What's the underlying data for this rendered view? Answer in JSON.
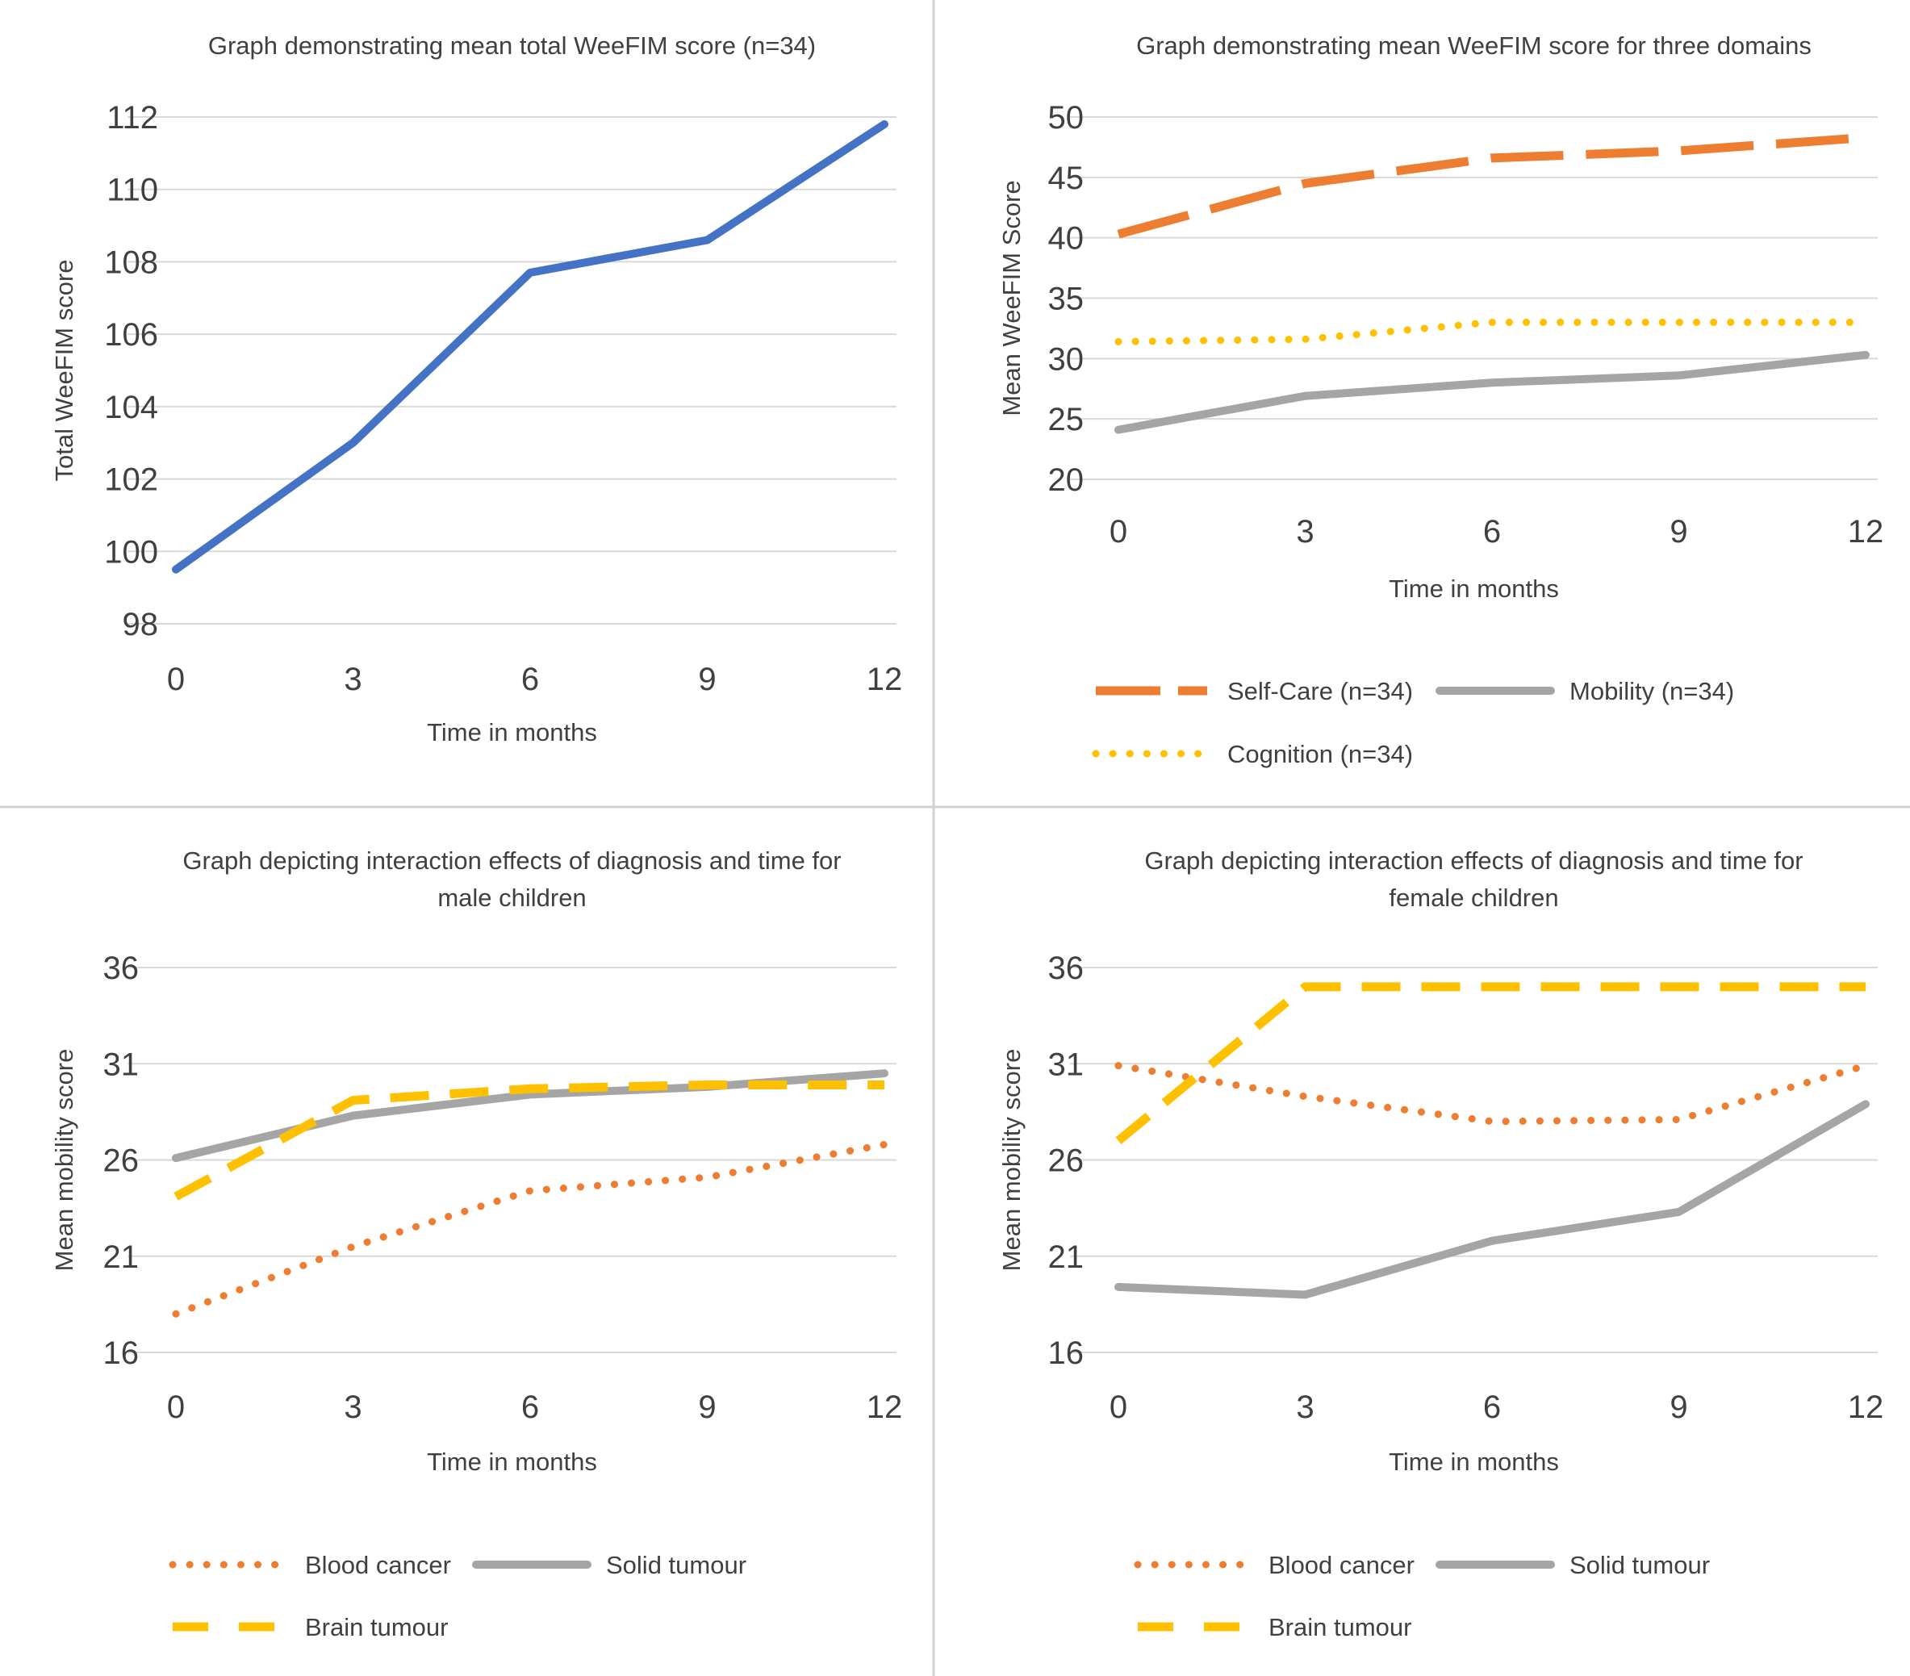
{
  "chart_data": [
    {
      "type": "line",
      "title": "Graph demonstrating mean total WeeFIM score (n=34)",
      "xlabel": "Time in months",
      "ylabel": "Total WeeFIM score",
      "categories": [
        "0",
        "3",
        "6",
        "9",
        "12"
      ],
      "y_ticks": [
        "98",
        "100",
        "102",
        "104",
        "106",
        "108",
        "110",
        "112"
      ],
      "ylim": [
        98,
        112
      ],
      "grid": true,
      "legend": "none",
      "series": [
        {
          "name": "",
          "values": [
            99.5,
            103.0,
            107.7,
            108.6,
            111.8
          ],
          "color": "#4472c4",
          "style": "solid"
        }
      ]
    },
    {
      "type": "line",
      "title": "Graph demonstrating mean WeeFIM score for three domains",
      "xlabel": "Time in months",
      "ylabel": "Mean WeeFIM Score",
      "categories": [
        "0",
        "3",
        "6",
        "9",
        "12"
      ],
      "y_ticks": [
        "20",
        "25",
        "30",
        "35",
        "40",
        "45",
        "50"
      ],
      "ylim": [
        20,
        50
      ],
      "grid": true,
      "legend": "bottom",
      "series": [
        {
          "name": "Self-Care (n=34)",
          "values": [
            40.3,
            44.5,
            46.6,
            47.2,
            48.3
          ],
          "color": "#ed7d31",
          "style": "longdash"
        },
        {
          "name": "Mobility (n=34)",
          "values": [
            24.1,
            26.9,
            28.0,
            28.6,
            30.3
          ],
          "color": "#a5a5a5",
          "style": "solid"
        },
        {
          "name": "Cognition (n=34)",
          "values": [
            31.4,
            31.6,
            33.0,
            33.0,
            33.0
          ],
          "color": "#ffc000",
          "style": "dotted"
        }
      ]
    },
    {
      "type": "line",
      "title": "Graph depicting interaction effects of diagnosis and time for male children",
      "title_lines": [
        "Graph depicting interaction effects of diagnosis and time for",
        "male children"
      ],
      "xlabel": "Time in months",
      "ylabel": "Mean mobility score",
      "categories": [
        "0",
        "3",
        "6",
        "9",
        "12"
      ],
      "y_ticks": [
        "16",
        "21",
        "26",
        "31",
        "36"
      ],
      "ylim": [
        16,
        36
      ],
      "grid": true,
      "legend": "bottom",
      "series": [
        {
          "name": "Blood cancer",
          "values": [
            18.0,
            21.5,
            24.4,
            25.1,
            26.8
          ],
          "color": "#ed7d31",
          "style": "dotted"
        },
        {
          "name": "Solid tumour",
          "values": [
            26.1,
            28.3,
            29.4,
            29.8,
            30.5
          ],
          "color": "#a5a5a5",
          "style": "solid"
        },
        {
          "name": "Brain tumour",
          "values": [
            24.1,
            29.1,
            29.7,
            29.9,
            29.9
          ],
          "color": "#ffc000",
          "style": "dash"
        }
      ]
    },
    {
      "type": "line",
      "title": "Graph depicting interaction effects of diagnosis and time for female children",
      "title_lines": [
        "Graph depicting interaction effects of diagnosis and time for",
        "female children"
      ],
      "xlabel": "Time in months",
      "ylabel": "Mean mobility score",
      "categories": [
        "0",
        "3",
        "6",
        "9",
        "12"
      ],
      "y_ticks": [
        "16",
        "21",
        "26",
        "31",
        "36"
      ],
      "ylim": [
        16,
        36
      ],
      "grid": true,
      "legend": "bottom",
      "series": [
        {
          "name": "Blood cancer",
          "values": [
            30.9,
            29.3,
            28.0,
            28.1,
            30.9
          ],
          "color": "#ed7d31",
          "style": "dotted"
        },
        {
          "name": "Solid tumour",
          "values": [
            19.4,
            19.0,
            21.8,
            23.3,
            28.9
          ],
          "color": "#a5a5a5",
          "style": "solid"
        },
        {
          "name": "Brain tumour",
          "values": [
            27.0,
            35.0,
            35.0,
            35.0,
            35.0
          ],
          "color": "#ffc000",
          "style": "dash"
        }
      ]
    }
  ]
}
